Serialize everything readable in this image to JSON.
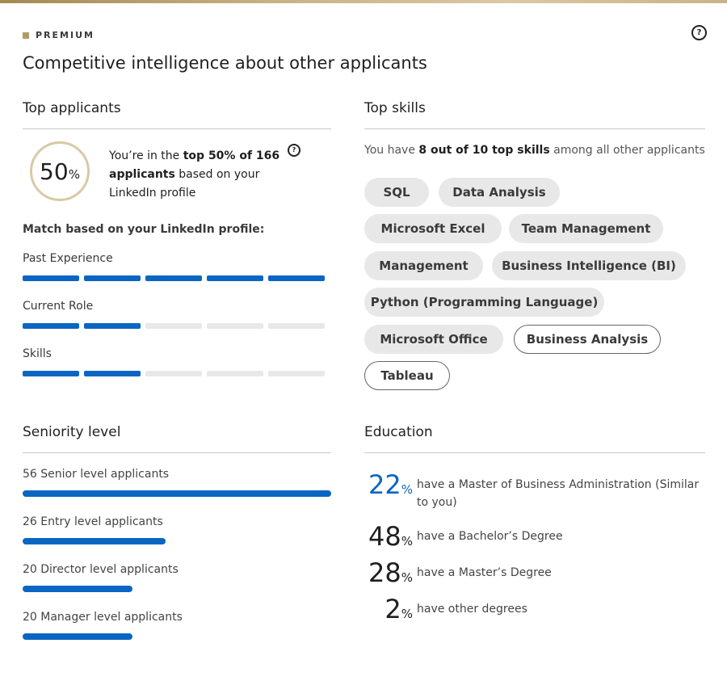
{
  "header": {
    "badge": "PREMIUM",
    "title": "Competitive intelligence about other applicants",
    "help_icon": "question-circle-icon"
  },
  "top_applicants": {
    "title": "Top applicants",
    "percentile_number": "50",
    "percentile_symbol": "%",
    "rank_prefix": "You’re in the",
    "rank_bold": "top 50% of 166 applicants",
    "rank_suffix": "based on your LinkedIn profile",
    "match_label": "Match based on your LinkedIn profile:",
    "metrics": [
      {
        "label": "Past Experience",
        "filled": 5,
        "total": 5
      },
      {
        "label": "Current Role",
        "filled": 2,
        "total": 5
      },
      {
        "label": "Skills",
        "filled": 2,
        "total": 5
      }
    ]
  },
  "top_skills": {
    "title": "Top skills",
    "summary_prefix": "You have",
    "summary_bold": "8 out of 10 top skills",
    "summary_suffix": "among all other applicants",
    "skills": [
      {
        "label": "SQL",
        "matched": true
      },
      {
        "label": "Data Analysis",
        "matched": true
      },
      {
        "label": "Microsoft Excel",
        "matched": true
      },
      {
        "label": "Team Management",
        "matched": true
      },
      {
        "label": "Management",
        "matched": true
      },
      {
        "label": "Business Intelligence (BI)",
        "matched": true
      },
      {
        "label": "Python (Programming Language)",
        "matched": true
      },
      {
        "label": "Microsoft Office",
        "matched": true
      },
      {
        "label": "Business Analysis",
        "matched": false
      },
      {
        "label": "Tableau",
        "matched": false
      }
    ]
  },
  "seniority": {
    "title": "Seniority level",
    "levels": [
      {
        "label": "56 Senior level applicants",
        "count": 56
      },
      {
        "label": "26 Entry level applicants",
        "count": 26
      },
      {
        "label": "20 Director level applicants",
        "count": 20
      },
      {
        "label": "20 Manager level applicants",
        "count": 20
      }
    ]
  },
  "education": {
    "title": "Education",
    "rows": [
      {
        "value": "22",
        "symbol": "%",
        "desc": "have a Master of Business Administration (Similar to you)"
      },
      {
        "value": "48",
        "symbol": "%",
        "desc": "have a Bachelor’s Degree"
      },
      {
        "value": "28",
        "symbol": "%",
        "desc": "have a Master’s Degree"
      },
      {
        "value": "2",
        "symbol": "%",
        "desc": "have other degrees"
      }
    ]
  },
  "colors": {
    "accent": "#0a66c2",
    "premium_gold": "#b39b69",
    "pill_bg": "#e8e8e8"
  }
}
